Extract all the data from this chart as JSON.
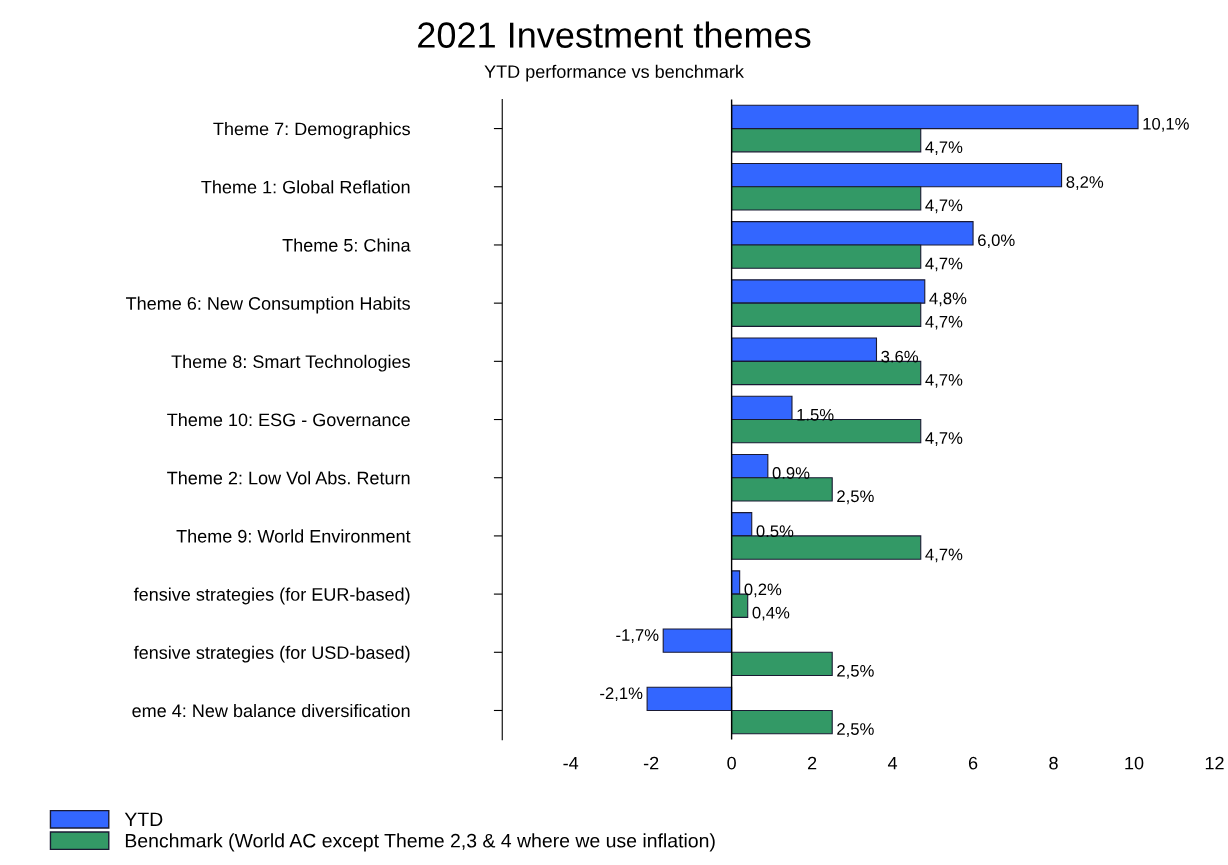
{
  "chart_data": {
    "type": "bar",
    "orientation": "horizontal",
    "title": "2021 Investment themes",
    "subtitle": "YTD performance vs benchmark",
    "categories": [
      "Theme 7: Demographics",
      "Theme 1: Global Reflation",
      "Theme 5: China",
      "Theme 6: New Consumption Habits",
      "Theme 8: Smart Technologies",
      "Theme 10: ESG - Governance",
      "Theme 2: Low Vol Abs. Return",
      "Theme 9: World Environment",
      "fensive strategies (for EUR-based)",
      "fensive strategies (for USD-based)",
      "eme 4: New balance diversification"
    ],
    "series": [
      {
        "name": "YTD",
        "color": "#3366ff",
        "values": [
          10.1,
          8.2,
          6.0,
          4.8,
          3.6,
          1.5,
          0.9,
          0.5,
          0.2,
          -1.7,
          -2.1
        ],
        "value_labels": [
          "10,1%",
          "8,2%",
          "6,0%",
          "4,8%",
          "3.6%",
          "1.5%",
          "0.9%",
          "0.5%",
          "0,2%",
          "-1,7%",
          "-2,1%"
        ]
      },
      {
        "name": "Benchmark (World AC except Theme 2,3 & 4 where we use inflation)",
        "color": "#339966",
        "values": [
          4.7,
          4.7,
          4.7,
          4.7,
          4.7,
          4.7,
          2.5,
          4.7,
          0.4,
          2.5,
          2.5
        ],
        "value_labels": [
          "4,7%",
          "4,7%",
          "4,7%",
          "4,7%",
          "4,7%",
          "4,7%",
          "2,5%",
          "4,7%",
          "0,4%",
          "2,5%",
          "2,5%"
        ]
      }
    ],
    "xlim": [
      -5.7,
      12
    ],
    "xticks": [
      -4,
      -2,
      0,
      2,
      4,
      6,
      8,
      10,
      12
    ],
    "ref_lines": [
      {
        "axis": "x",
        "value": 0,
        "color": "#000000"
      }
    ],
    "grid": false,
    "legend": "bottom left"
  }
}
